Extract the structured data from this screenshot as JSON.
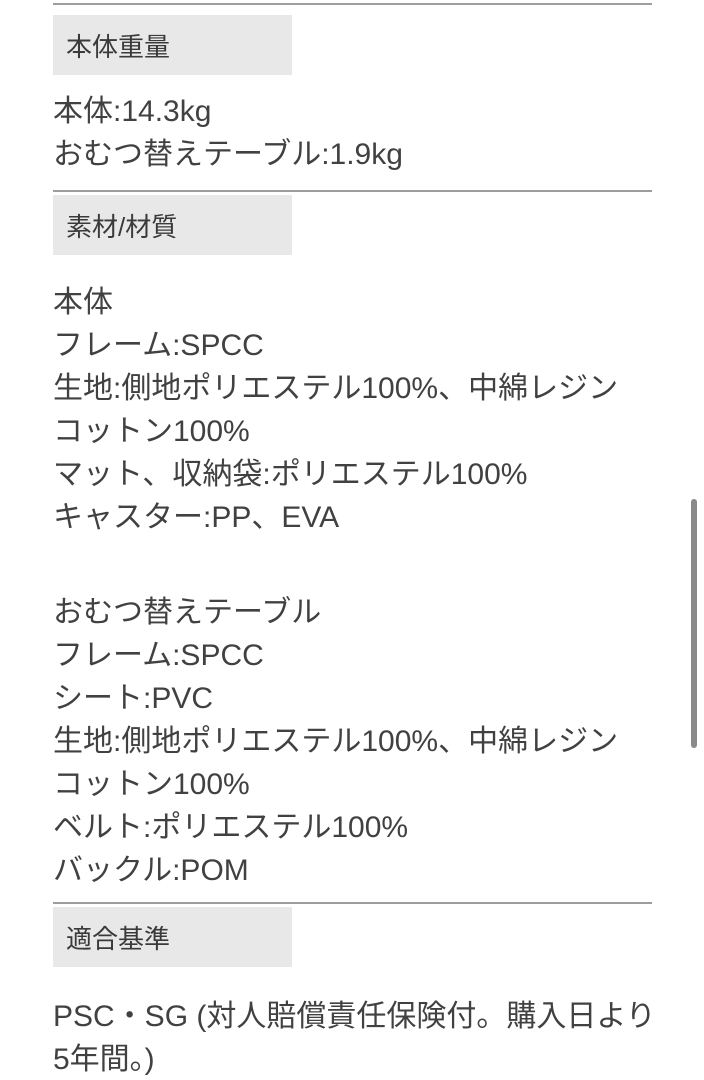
{
  "page": {
    "sections": [
      {
        "title": "本体重量",
        "lines": [
          "本体:14.3kg",
          "おむつ替えテーブル:1.9kg"
        ]
      },
      {
        "title": "素材/材質",
        "group1": [
          "本体",
          "フレーム:SPCC",
          "生地:側地ポリエステル100%、中綿レジン",
          "コットン100%",
          "マット、収納袋:ポリエステル100%",
          "キャスター:PP、EVA"
        ],
        "group2": [
          "おむつ替えテーブル",
          "フレーム:SPCC",
          "シート:PVC",
          "生地:側地ポリエステル100%、中綿レジン",
          "コットン100%",
          "ベルト:ポリエステル100%",
          "バックル:POM"
        ]
      },
      {
        "title": "適合基準",
        "lines": [
          "PSC・SG (対人賠償責任保険付。購入日より",
          "5年間。)"
        ]
      }
    ],
    "colors": {
      "background": "#ffffff",
      "section_header_bg": "#e8e8e8",
      "divider": "#9e9e9e",
      "text": "#414141",
      "scrollbar": "#8a8a8a"
    }
  }
}
